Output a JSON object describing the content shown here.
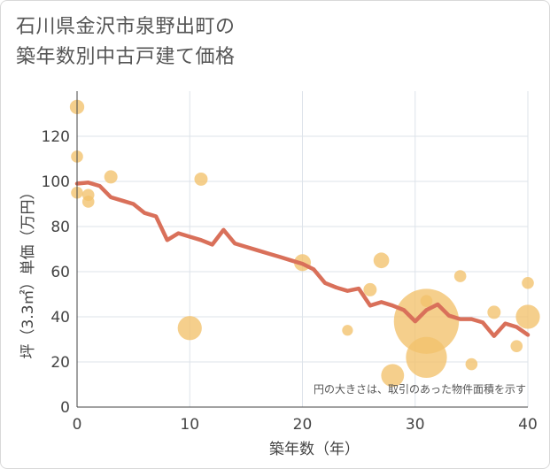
{
  "title_lines": [
    "石川県金沢市泉野出町の",
    "築年数別中古戸建て価格"
  ],
  "chart_data": {
    "type": "scatter+line",
    "title": "石川県金沢市泉野出町の築年数別中古戸建て価格",
    "xlabel": "築年数（年）",
    "ylabel": "坪（3.3㎡）単価（万円）",
    "xlim": [
      0,
      40
    ],
    "ylim": [
      0,
      140
    ],
    "x_ticks": [
      0,
      10,
      20,
      30,
      40
    ],
    "y_ticks": [
      0,
      20,
      40,
      60,
      80,
      100,
      120
    ],
    "annotation": "円の大きさは、取引のあった物件面積を示す",
    "colors": {
      "bubble": "#f2c26b",
      "line": "#d9705a",
      "grid": "#dde3ea"
    },
    "bubbles": [
      {
        "x": 0,
        "y": 133,
        "size": 1.2
      },
      {
        "x": 0,
        "y": 111,
        "size": 1.0
      },
      {
        "x": 0,
        "y": 95,
        "size": 1.0
      },
      {
        "x": 1,
        "y": 94,
        "size": 1.0
      },
      {
        "x": 1,
        "y": 91,
        "size": 1.0
      },
      {
        "x": 3,
        "y": 102,
        "size": 1.1
      },
      {
        "x": 10,
        "y": 35,
        "size": 2.0
      },
      {
        "x": 11,
        "y": 101,
        "size": 1.1
      },
      {
        "x": 20,
        "y": 64,
        "size": 1.4
      },
      {
        "x": 24,
        "y": 34,
        "size": 0.9
      },
      {
        "x": 26,
        "y": 52,
        "size": 1.1
      },
      {
        "x": 27,
        "y": 65,
        "size": 1.3
      },
      {
        "x": 28,
        "y": 14,
        "size": 1.9
      },
      {
        "x": 31,
        "y": 38,
        "size": 5.4
      },
      {
        "x": 31,
        "y": 22,
        "size": 3.4
      },
      {
        "x": 31,
        "y": 47,
        "size": 1.0
      },
      {
        "x": 34,
        "y": 58,
        "size": 1.0
      },
      {
        "x": 35,
        "y": 19,
        "size": 1.0
      },
      {
        "x": 37,
        "y": 42,
        "size": 1.1
      },
      {
        "x": 39,
        "y": 27,
        "size": 1.0
      },
      {
        "x": 40,
        "y": 55,
        "size": 1.0
      },
      {
        "x": 40,
        "y": 40,
        "size": 2.0
      }
    ],
    "line": {
      "x": [
        0,
        1,
        2,
        3,
        4,
        5,
        6,
        7,
        8,
        9,
        10,
        11,
        12,
        13,
        14,
        15,
        16,
        17,
        18,
        19,
        20,
        21,
        22,
        23,
        24,
        25,
        26,
        27,
        28,
        29,
        30,
        31,
        32,
        33,
        34,
        35,
        36,
        37,
        38,
        39,
        40
      ],
      "y": [
        99,
        99.5,
        98,
        93,
        91.5,
        90,
        86,
        84.5,
        74,
        77,
        75.5,
        74,
        72,
        78.5,
        72.5,
        71,
        69.5,
        68,
        66.5,
        65,
        63.5,
        61,
        55,
        53,
        51.5,
        52.5,
        45,
        46.5,
        45,
        43,
        38,
        43,
        45.5,
        40.5,
        39,
        39,
        37.5,
        31.5,
        37,
        35.5,
        32
      ]
    }
  }
}
